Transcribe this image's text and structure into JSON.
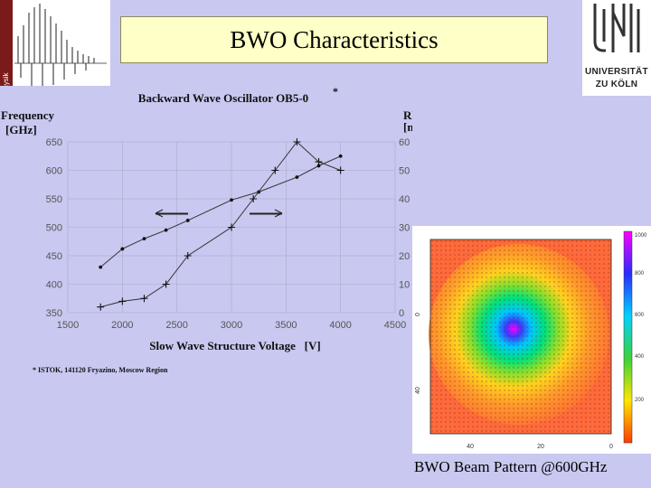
{
  "slide": {
    "title": "BWO Characteristics",
    "university_logo": {
      "line1": "UNIVERSITÄT",
      "line2": "ZU KÖLN",
      "icon": "university-seal-icon"
    },
    "corner_logo": {
      "icon": "spectrum-plot-icon"
    },
    "beam_caption": "BWO Beam Pattern @600GHz"
  },
  "chart_data": {
    "type": "line",
    "title": "Backward Wave Oscillator OB5-0",
    "title_mark": "*",
    "xlabel": "Slow Wave Structure Voltage   [V]",
    "ylabel_left": [
      "Frequency",
      "[GHz]"
    ],
    "ylabel_right": [
      "RF Power",
      "[mW]"
    ],
    "xlim": [
      1500,
      4500
    ],
    "ylim_left": [
      350,
      650
    ],
    "ylim_right": [
      0,
      60
    ],
    "x_ticks": [
      1500,
      2000,
      2500,
      3000,
      3500,
      4000,
      4500
    ],
    "y_ticks_left": [
      350,
      400,
      450,
      500,
      550,
      600,
      650
    ],
    "y_ticks_right": [
      0,
      10,
      20,
      30,
      40,
      50,
      60
    ],
    "grid": true,
    "series": [
      {
        "axis": "left",
        "marker": "dot",
        "x": [
          1800,
          2000,
          2200,
          2400,
          2600,
          3000,
          3250,
          3600,
          3800,
          4000
        ],
        "y": [
          430,
          462,
          480,
          495,
          512,
          548,
          562,
          588,
          608,
          625
        ]
      },
      {
        "axis": "right",
        "marker": "plus",
        "x": [
          1800,
          2000,
          2200,
          2400,
          2600,
          3000,
          3200,
          3400,
          3600,
          3800,
          4000
        ],
        "y": [
          2,
          4,
          5,
          10,
          20,
          30,
          40,
          50,
          60,
          53,
          50
        ]
      }
    ],
    "footnote": "* ISTOK, 141120 Fryazino, Moscow Region"
  },
  "beam_pattern": {
    "type": "heatmap",
    "x_ticks": [
      "40",
      "20",
      "0"
    ],
    "y_ticks": [
      "0",
      "40"
    ],
    "colorbar_ticks": [
      "1000",
      "800",
      "600",
      "400",
      "200"
    ]
  }
}
